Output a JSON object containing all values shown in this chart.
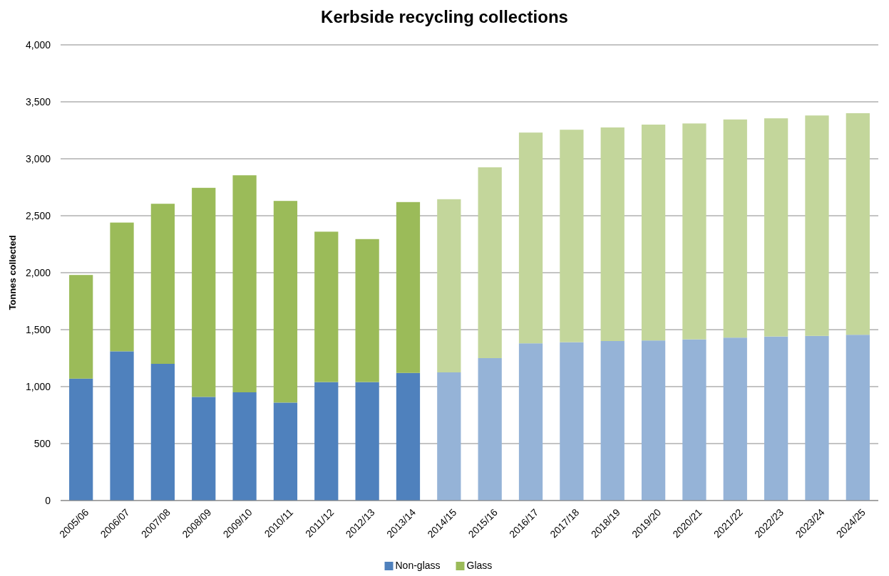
{
  "chart_data": {
    "type": "bar",
    "title": "Kerbside recycling collections",
    "ylabel": "Tonnes collected",
    "categories": [
      "2005/06",
      "2006/07",
      "2007/08",
      "2008/09",
      "2009/10",
      "2010/11",
      "2011/12",
      "2012/13",
      "2013/14",
      "2014/15",
      "2015/16",
      "2016/17",
      "2017/18",
      "2018/19",
      "2019/20",
      "2020/21",
      "2021/22",
      "2022/23",
      "2023/24",
      "2024/25"
    ],
    "stacked": true,
    "series": [
      {
        "name": "Non-glass",
        "color": "#4f81bd",
        "colors": [
          "#4f81bd",
          "#4f81bd",
          "#4f81bd",
          "#4f81bd",
          "#4f81bd",
          "#4f81bd",
          "#4f81bd",
          "#4f81bd",
          "#4f81bd",
          "#95b3d7",
          "#95b3d7",
          "#95b3d7",
          "#95b3d7",
          "#95b3d7",
          "#95b3d7",
          "#95b3d7",
          "#95b3d7",
          "#95b3d7",
          "#95b3d7",
          "#95b3d7"
        ],
        "values": [
          1070,
          1310,
          1200,
          910,
          950,
          860,
          1040,
          1040,
          1120,
          1125,
          1250,
          1380,
          1390,
          1400,
          1405,
          1415,
          1430,
          1440,
          1445,
          1455
        ]
      },
      {
        "name": "Glass",
        "color": "#9bbb59",
        "colors": [
          "#9bbb59",
          "#9bbb59",
          "#9bbb59",
          "#9bbb59",
          "#9bbb59",
          "#9bbb59",
          "#9bbb59",
          "#9bbb59",
          "#9bbb59",
          "#c3d69b",
          "#c3d69b",
          "#c3d69b",
          "#c3d69b",
          "#c3d69b",
          "#c3d69b",
          "#c3d69b",
          "#c3d69b",
          "#c3d69b",
          "#c3d69b",
          "#c3d69b"
        ],
        "values": [
          910,
          1130,
          1405,
          1835,
          1905,
          1770,
          1320,
          1255,
          1500,
          1520,
          1675,
          1850,
          1865,
          1875,
          1895,
          1895,
          1915,
          1915,
          1935,
          1945
        ]
      }
    ],
    "ylim": [
      0,
      4000
    ],
    "yticks": [
      0,
      500,
      {
        "value": 1000,
        "label": "1,000"
      },
      {
        "value": 1500,
        "label": "1,500"
      },
      {
        "value": 2000,
        "label": "2,000"
      },
      {
        "value": 2500,
        "label": "2,500"
      },
      {
        "value": 3000,
        "label": "3,000"
      },
      {
        "value": 3500,
        "label": "3,500"
      },
      {
        "value": 4000,
        "label": "4,000"
      }
    ],
    "grid": "y",
    "legend": "bottom"
  }
}
